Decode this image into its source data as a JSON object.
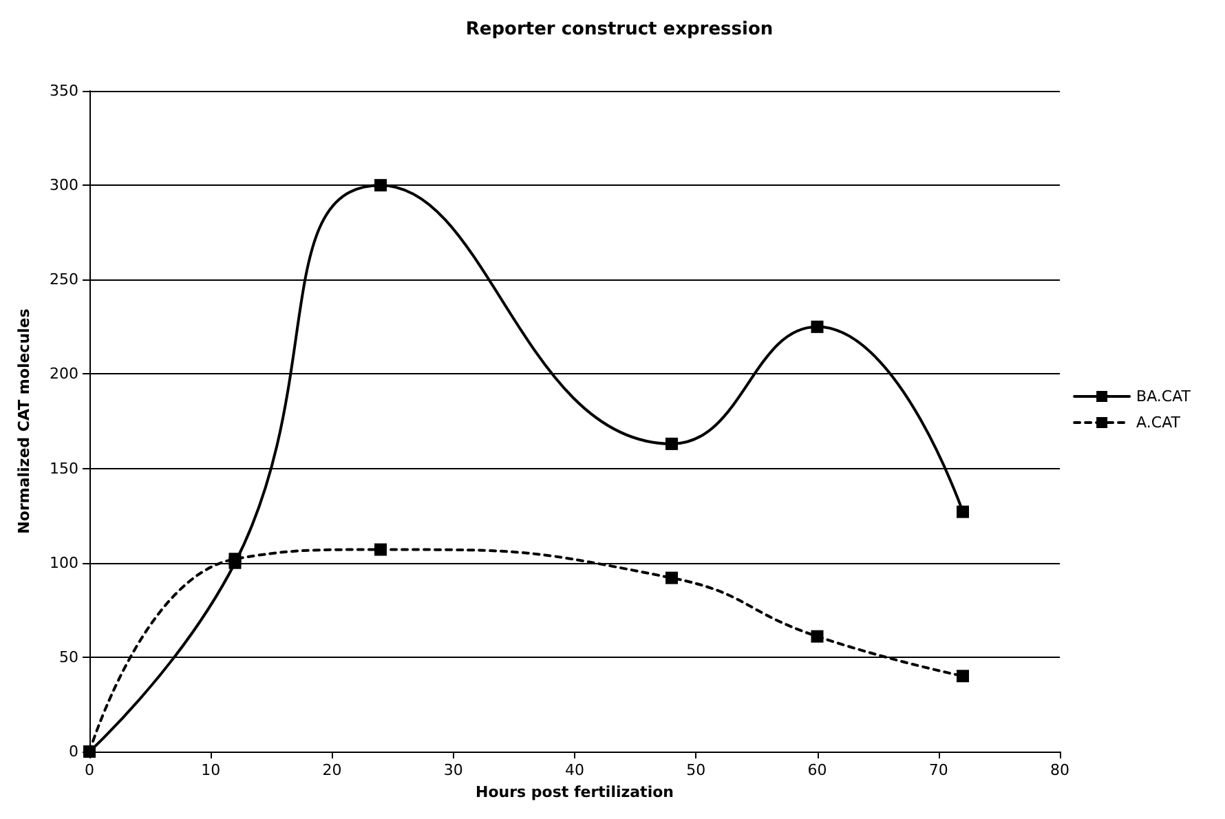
{
  "chart_data": {
    "type": "line",
    "title": "Reporter construct expression",
    "xlabel": "Hours post fertilization",
    "ylabel": "Normalized CAT molecules",
    "x": [
      0,
      12,
      24,
      48,
      60,
      72
    ],
    "series": [
      {
        "name": "BA.CAT",
        "color": "#000000",
        "line_style": "solid",
        "values": [
          0,
          100,
          300,
          163,
          225,
          127
        ]
      },
      {
        "name": "A.CAT",
        "color": "#000000",
        "line_style": "dashed",
        "values": [
          0,
          102,
          107,
          92,
          61,
          40
        ]
      }
    ],
    "xlim": [
      0,
      80
    ],
    "xticks": [
      0,
      10,
      20,
      30,
      40,
      50,
      60,
      70,
      80
    ],
    "ylim": [
      0,
      350
    ],
    "yticks": [
      0,
      50,
      100,
      150,
      200,
      250,
      300,
      350
    ],
    "grid": "y",
    "legend": "right",
    "marker": "square"
  }
}
